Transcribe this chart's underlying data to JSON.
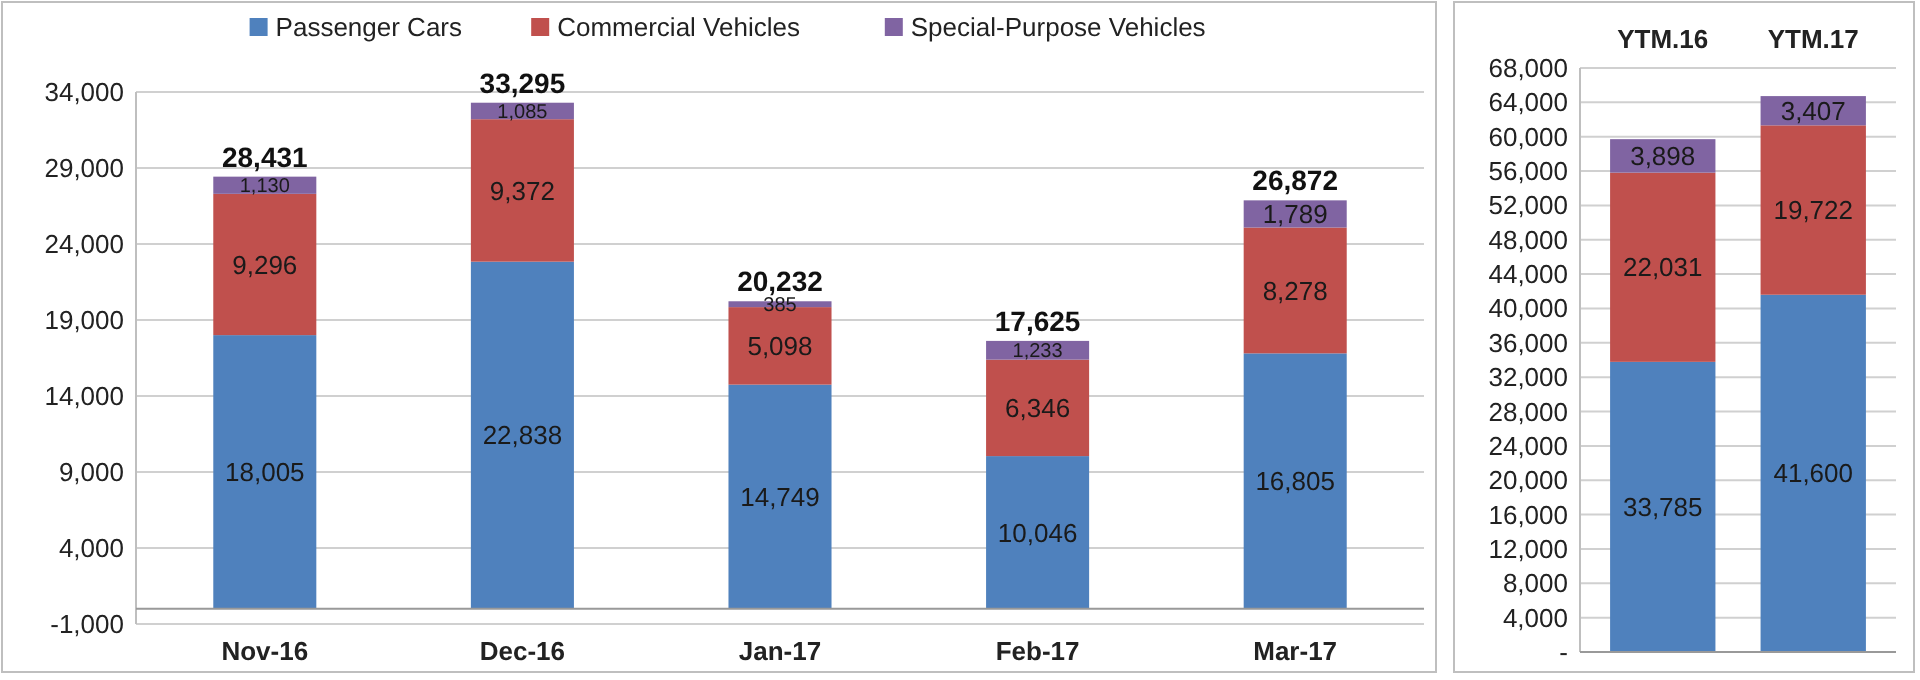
{
  "chart_data": [
    {
      "type": "bar",
      "stacked": true,
      "categories": [
        "Nov-16",
        "Dec-16",
        "Jan-17",
        "Feb-17",
        "Mar-17"
      ],
      "series": [
        {
          "name": "Passenger Cars",
          "color": "#4f81bd",
          "values": [
            18005,
            22838,
            14749,
            10046,
            16805
          ],
          "value_labels": [
            "18,005",
            "22,838",
            "14,749",
            "10,046",
            "16,805"
          ]
        },
        {
          "name": "Commercial Vehicles",
          "color": "#c0504d",
          "values": [
            9296,
            9372,
            5098,
            6346,
            8278
          ],
          "value_labels": [
            "9,296",
            "9,372",
            "5,098",
            "6,346",
            "8,278"
          ]
        },
        {
          "name": "Special-Purpose Vehicles",
          "color": "#8064a2",
          "values": [
            1130,
            1085,
            385,
            1233,
            1789
          ],
          "value_labels": [
            "1,130",
            "1,085",
            "385",
            "1,233",
            "1,789"
          ]
        }
      ],
      "totals": [
        "28,431",
        "33,295",
        "20,232",
        "17,625",
        "26,872"
      ],
      "ylim": [
        -1000,
        34000
      ],
      "yticks": [
        {
          "value": -1000,
          "label": "-1,000"
        },
        {
          "value": 4000,
          "label": "4,000"
        },
        {
          "value": 9000,
          "label": "9,000"
        },
        {
          "value": 14000,
          "label": "14,000"
        },
        {
          "value": 19000,
          "label": "19,000"
        },
        {
          "value": 24000,
          "label": "24,000"
        },
        {
          "value": 29000,
          "label": "29,000"
        },
        {
          "value": 34000,
          "label": "34,000"
        }
      ],
      "grid": "y",
      "legend": "top"
    },
    {
      "type": "bar",
      "stacked": true,
      "categories": [
        "YTM.16",
        "YTM.17"
      ],
      "series": [
        {
          "color": "#4f81bd",
          "values": [
            33785,
            41600
          ],
          "value_labels": [
            "33,785",
            "41,600"
          ]
        },
        {
          "color": "#c0504d",
          "values": [
            22031,
            19722
          ],
          "value_labels": [
            "22,031",
            "19,722"
          ]
        },
        {
          "color": "#8064a2",
          "values": [
            3898,
            3407
          ],
          "value_labels": [
            "3,898",
            "3,407"
          ]
        }
      ],
      "ylim": [
        0,
        68000
      ],
      "yticks": [
        {
          "value": 0,
          "label": "-"
        },
        {
          "value": 4000,
          "label": "4,000"
        },
        {
          "value": 8000,
          "label": "8,000"
        },
        {
          "value": 12000,
          "label": "12,000"
        },
        {
          "value": 16000,
          "label": "16,000"
        },
        {
          "value": 20000,
          "label": "20,000"
        },
        {
          "value": 24000,
          "label": "24,000"
        },
        {
          "value": 28000,
          "label": "28,000"
        },
        {
          "value": 32000,
          "label": "32,000"
        },
        {
          "value": 36000,
          "label": "36,000"
        },
        {
          "value": 40000,
          "label": "40,000"
        },
        {
          "value": 44000,
          "label": "44,000"
        },
        {
          "value": 48000,
          "label": "48,000"
        },
        {
          "value": 52000,
          "label": "52,000"
        },
        {
          "value": 56000,
          "label": "56,000"
        },
        {
          "value": 60000,
          "label": "60,000"
        },
        {
          "value": 64000,
          "label": "64,000"
        },
        {
          "value": 68000,
          "label": "68,000"
        }
      ],
      "grid": "y"
    }
  ]
}
